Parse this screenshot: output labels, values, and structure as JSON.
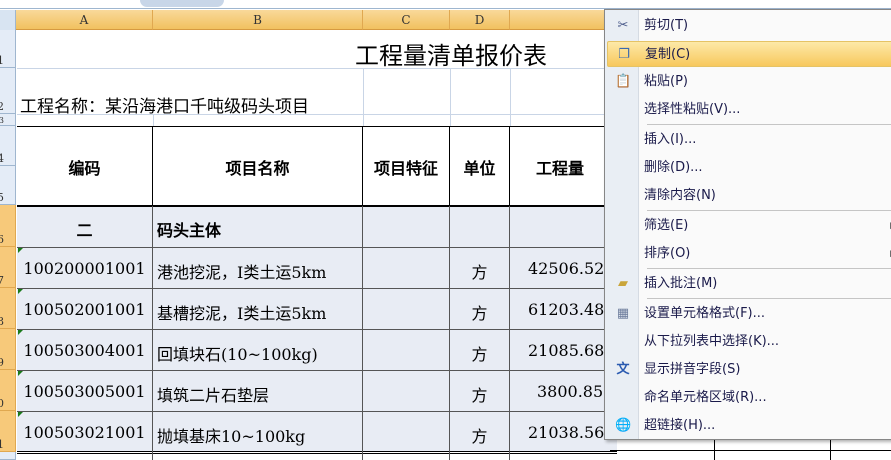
{
  "columns": [
    "A",
    "B",
    "C",
    "D",
    "E"
  ],
  "rows": [
    "1",
    "2",
    "3",
    "4",
    "5",
    "6",
    "7",
    "8",
    "9",
    "10",
    "11"
  ],
  "title": "工程量清单报价表",
  "project_name": "工程名称：某沿海港口千吨级码头项目",
  "headers": {
    "code": "编码",
    "name": "项目名称",
    "feature": "项目特征",
    "unit": "单位",
    "quantity": "工程量"
  },
  "section": {
    "code": "二",
    "name": "码头主体"
  },
  "items": [
    {
      "code": "100200001001",
      "name": "港池挖泥，I类土运5km",
      "unit": "方",
      "quantity": "42506.52"
    },
    {
      "code": "100502001001",
      "name": "基槽挖泥，I类土运5km",
      "unit": "方",
      "quantity": "61203.48"
    },
    {
      "code": "100503004001",
      "name": "回填块石(10~100kg)",
      "unit": "方",
      "quantity": "21085.68"
    },
    {
      "code": "100503005001",
      "name": "填筑二片石垫层",
      "unit": "方",
      "quantity": "3800.85"
    },
    {
      "code": "100503021001",
      "name": "抛填基床10~100kg",
      "unit": "方",
      "quantity": "21038.56"
    }
  ],
  "context_menu": {
    "items": [
      {
        "label": "剪切(T)",
        "icon": "scissors-icon"
      },
      {
        "label": "复制(C)",
        "icon": "copy-icon",
        "highlighted": true
      },
      {
        "label": "粘贴(P)",
        "icon": "paste-icon"
      },
      {
        "label": "选择性粘贴(V)..."
      },
      {
        "label": "插入(I)..."
      },
      {
        "label": "删除(D)..."
      },
      {
        "label": "清除内容(N)"
      },
      {
        "label": "筛选(E)",
        "submenu": true
      },
      {
        "label": "排序(O)",
        "submenu": true
      },
      {
        "label": "插入批注(M)",
        "icon": "comment-icon"
      },
      {
        "label": "设置单元格格式(F)...",
        "icon": "format-cells-icon"
      },
      {
        "label": "从下拉列表中选择(K)..."
      },
      {
        "label": "显示拼音字段(S)",
        "icon": "phonetic-icon"
      },
      {
        "label": "命名单元格区域(R)..."
      },
      {
        "label": "超链接(H)...",
        "icon": "hyperlink-icon"
      }
    ]
  },
  "colors": {
    "header_orange": "#f1c15f",
    "highlight": "#f7c85d",
    "selection_fill": "#e8ecf4"
  }
}
